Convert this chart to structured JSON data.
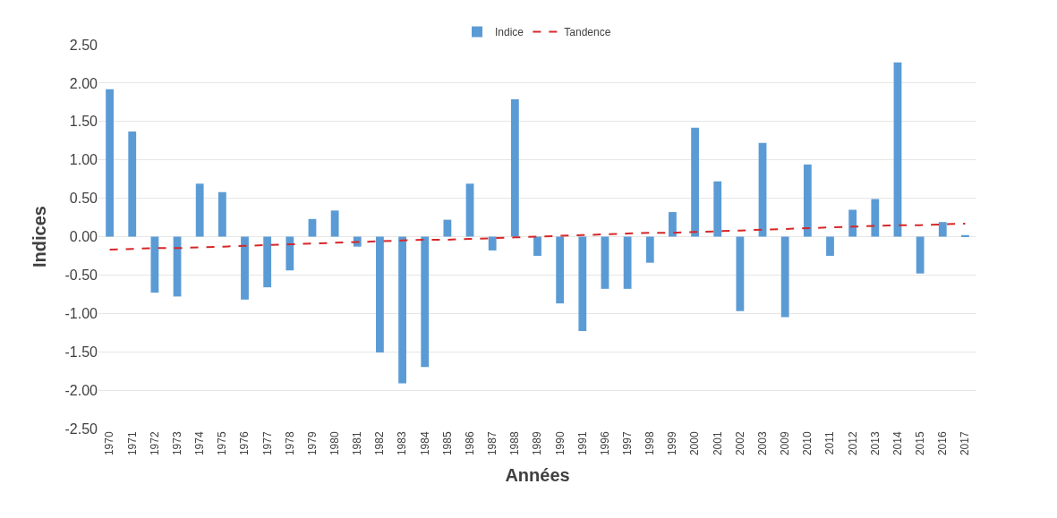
{
  "chart_data": {
    "type": "bar",
    "xlabel": "Années",
    "ylabel": "Indices",
    "categories": [
      "1970",
      "1971",
      "1972",
      "1973",
      "1974",
      "1975",
      "1976",
      "1977",
      "1978",
      "1979",
      "1980",
      "1981",
      "1982",
      "1983",
      "1984",
      "1985",
      "1986",
      "1987",
      "1988",
      "1989",
      "1990",
      "1991",
      "1996",
      "1997",
      "1998",
      "1999",
      "2000",
      "2001",
      "2002",
      "2003",
      "2009",
      "2010",
      "2011",
      "2012",
      "2013",
      "2014",
      "2015",
      "2016",
      "2017"
    ],
    "series": [
      {
        "name": "Indice",
        "color": "#5b9bd5",
        "values": [
          1.92,
          1.37,
          -0.73,
          -0.78,
          0.69,
          0.58,
          -0.82,
          -0.66,
          -0.44,
          0.23,
          0.34,
          -0.13,
          -1.51,
          -1.91,
          -1.7,
          0.22,
          0.69,
          -0.18,
          1.79,
          -0.25,
          -0.87,
          -1.23,
          -0.68,
          -0.68,
          -0.34,
          0.32,
          1.42,
          0.72,
          -0.97,
          1.22,
          -1.05,
          0.94,
          -0.25,
          0.35,
          0.49,
          2.27,
          -0.48,
          0.19,
          0.02
        ]
      },
      {
        "name": "Tandence",
        "type": "line",
        "color": "#d62728",
        "line_style": "dashed",
        "values": [
          -0.17,
          -0.16,
          -0.15,
          -0.15,
          -0.14,
          -0.13,
          -0.12,
          -0.11,
          -0.1,
          -0.09,
          -0.08,
          -0.07,
          -0.06,
          -0.05,
          -0.04,
          -0.04,
          -0.03,
          -0.02,
          -0.01,
          0.0,
          0.01,
          0.02,
          0.03,
          0.04,
          0.05,
          0.05,
          0.06,
          0.07,
          0.08,
          0.09,
          0.1,
          0.11,
          0.12,
          0.13,
          0.14,
          0.15,
          0.15,
          0.16,
          0.17
        ]
      }
    ],
    "ylim": [
      -2.5,
      2.5
    ],
    "yticks": [
      {
        "value": 2.5,
        "label": "2.50"
      },
      {
        "value": 2.0,
        "label": "2.00"
      },
      {
        "value": 1.5,
        "label": "1.50"
      },
      {
        "value": 1.0,
        "label": "1.00"
      },
      {
        "value": 0.5,
        "label": "0.50"
      },
      {
        "value": 0.0,
        "label": "0.00"
      },
      {
        "value": -0.5,
        "label": "-0.50"
      },
      {
        "value": -1.0,
        "label": "-1.00"
      },
      {
        "value": -1.5,
        "label": "-1.50"
      },
      {
        "value": -2.0,
        "label": "-2.00"
      },
      {
        "value": -2.5,
        "label": "-2.50"
      }
    ],
    "grid": "y",
    "legend": "top"
  }
}
